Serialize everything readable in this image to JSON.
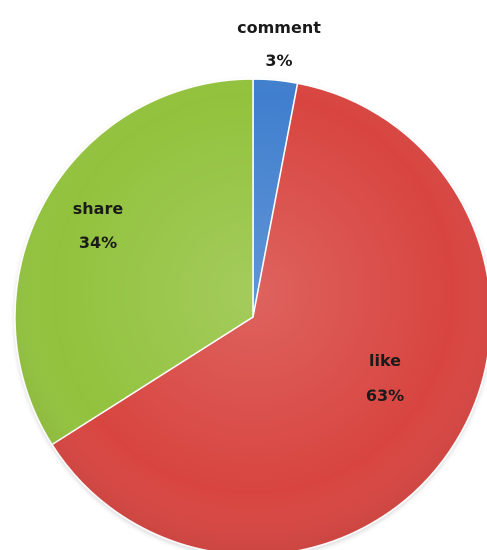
{
  "chart_data": {
    "type": "pie",
    "title": "",
    "slices": [
      {
        "label": "comment",
        "value": 3,
        "percent_label": "3%",
        "color": "#3f7fce"
      },
      {
        "label": "like",
        "value": 63,
        "percent_label": "63%",
        "color": "#d84440"
      },
      {
        "label": "share",
        "value": 34,
        "percent_label": "34%",
        "color": "#92c23e"
      }
    ],
    "start_angle_deg": 0,
    "direction": "clockwise",
    "legend": "none",
    "data_labels": "category name and percentage"
  }
}
